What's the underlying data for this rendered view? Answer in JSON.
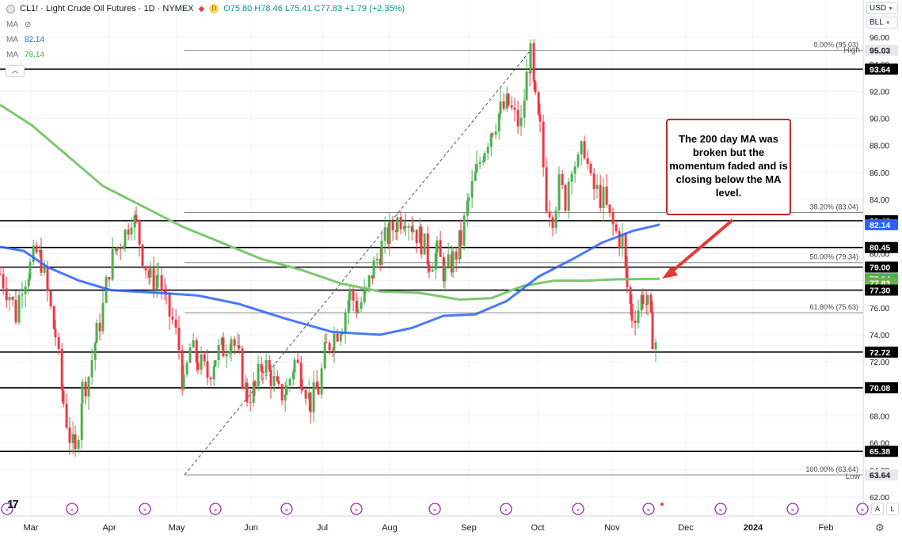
{
  "legend": {
    "symbol": "CL1!",
    "name": "Light Crude Oil Futures",
    "interval": "1D",
    "exchange": "NYMEX",
    "open_label": "O",
    "open": "75.80",
    "high_label": "H",
    "high": "78.46",
    "low_label": "L",
    "low": "75.41",
    "close_label": "C",
    "close": "77.83",
    "change": "+1.79 (+2.35%)",
    "coin_icon": "D"
  },
  "ma_rows": [
    {
      "label": "MA",
      "value": "",
      "icon": "eye-slash-icon"
    },
    {
      "label": "MA",
      "value": "82.14",
      "color": "#2962ff"
    },
    {
      "label": "MA",
      "value": "78.14",
      "color": "#4caf50"
    }
  ],
  "axis": {
    "currency": "USD",
    "unit": "BLL",
    "ticks": [
      "96.00",
      "94.00",
      "92.00",
      "90.00",
      "88.00",
      "86.00",
      "84.00",
      "82.00",
      "80.00",
      "78.00",
      "76.00",
      "74.00",
      "72.00",
      "70.00",
      "68.00",
      "66.00",
      "64.00",
      "62.00"
    ],
    "time_labels": [
      "Mar",
      "Apr",
      "May",
      "Jun",
      "Jul",
      "Aug",
      "Sep",
      "Oct",
      "Nov",
      "Dec",
      "2024",
      "Feb"
    ],
    "time_label_2024": "2024",
    "auto_button": "A",
    "log_button": "L"
  },
  "fib": {
    "high_text": "High",
    "low_text": "Low",
    "levels": [
      {
        "text": "0.00% (95.03)",
        "price": 95.03
      },
      {
        "text": "38.20% (83.04)",
        "price": 83.04
      },
      {
        "text": "50.00% (79.34)",
        "price": 79.34
      },
      {
        "text": "61.80% (75.63)",
        "price": 75.63
      },
      {
        "text": "100.00% (63.64)",
        "price": 63.64
      }
    ]
  },
  "price_badges": [
    {
      "text": "95.03",
      "price": 95.03,
      "style": "light"
    },
    {
      "text": "93.64",
      "price": 93.64,
      "style": "dark"
    },
    {
      "text": "82.43",
      "price": 82.43,
      "style": "dark"
    },
    {
      "text": "82.14",
      "price": 82.14,
      "style": "blue"
    },
    {
      "text": "80.45",
      "price": 80.45,
      "style": "dark"
    },
    {
      "text": "79.00",
      "price": 79.0,
      "style": "dark"
    },
    {
      "text": "78.14",
      "price": 78.14,
      "style": "green"
    },
    {
      "text": "77.83",
      "price": 77.83,
      "style": "green2"
    },
    {
      "text": "77.30",
      "price": 77.3,
      "style": "dark"
    },
    {
      "text": "72.72",
      "price": 72.72,
      "style": "dark"
    },
    {
      "text": "70.08",
      "price": 70.08,
      "style": "dark"
    },
    {
      "text": "65.38",
      "price": 65.38,
      "style": "dark"
    },
    {
      "text": "63.64",
      "price": 63.64,
      "style": "light"
    }
  ],
  "annotation": {
    "text": "The 200 day MA was broken but the momentum faded and is closing below the MA level."
  },
  "colors": {
    "up": "#089981",
    "up_candle": "#4caf50",
    "down": "#f23645",
    "ma_blue": "#2962ff",
    "ma_green": "#4caf50",
    "annotation_border": "#c62828"
  },
  "chart_data": {
    "type": "candlestick",
    "horizontal_levels": [
      93.64,
      82.43,
      80.45,
      79.0,
      77.3,
      72.72,
      70.08,
      65.38
    ],
    "y_range": [
      61.5,
      96.5
    ],
    "swing_high": 95.03,
    "swing_low": 63.64,
    "last_close": 77.83
  }
}
